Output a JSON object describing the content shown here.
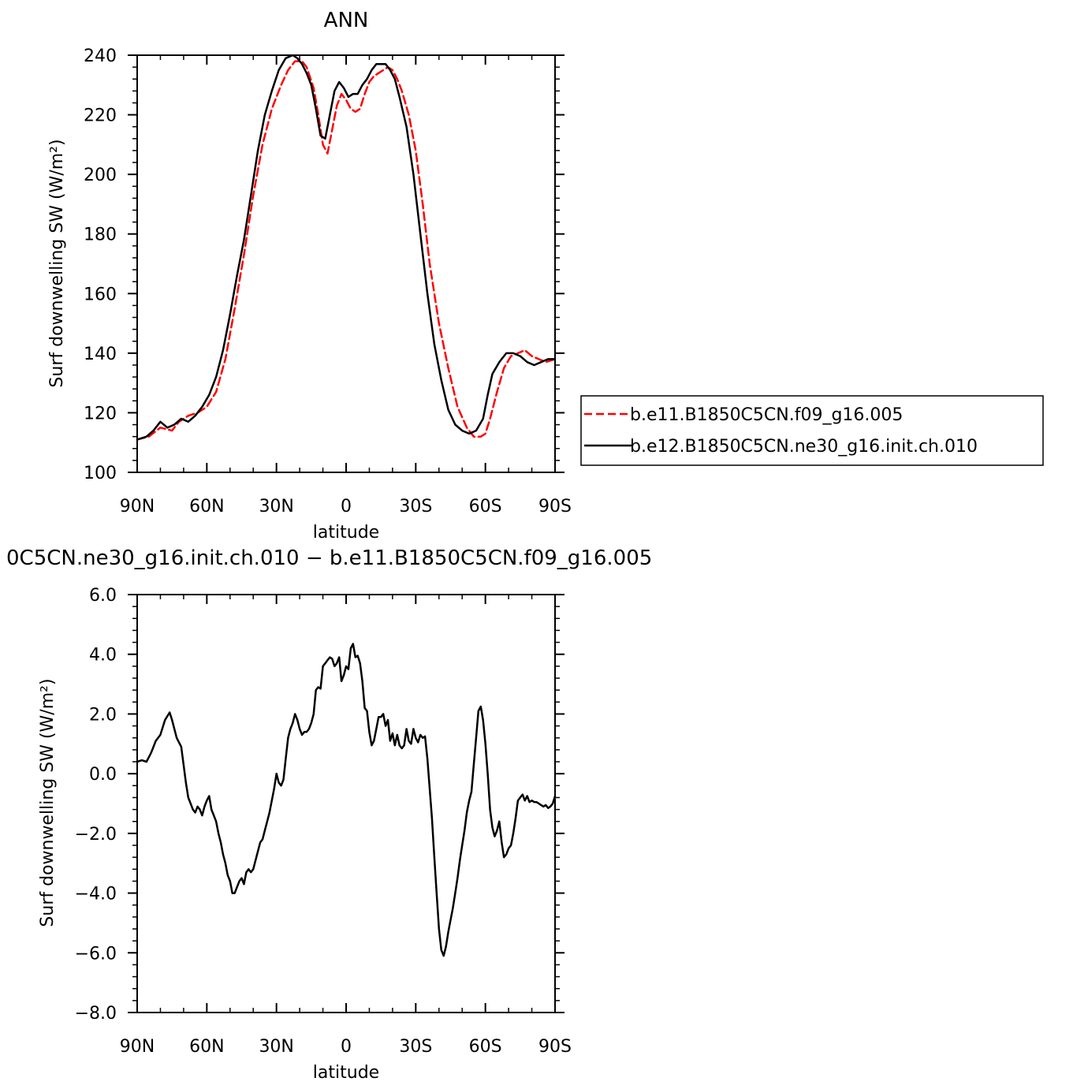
{
  "chart_data": [
    {
      "type": "line",
      "title": "ANN",
      "xlabel": "latitude",
      "ylabel": "Surf downwelling SW (W/m²)",
      "xlim": [
        -90,
        90
      ],
      "ylim": [
        100,
        240
      ],
      "xticks": [
        -90,
        -60,
        -30,
        0,
        30,
        60,
        90
      ],
      "xtick_labels": [
        "90N",
        "60N",
        "30N",
        "0",
        "30S",
        "60S",
        "90S"
      ],
      "yticks": [
        100,
        120,
        140,
        160,
        180,
        200,
        220,
        240
      ],
      "ytick_labels": [
        "100",
        "120",
        "140",
        "160",
        "180",
        "200",
        "220",
        "240"
      ],
      "grid": false,
      "legend_position": "right",
      "series": [
        {
          "name": "b.e11.B1850C5CN.f09_g16.005",
          "color": "#ff0000",
          "style": "dashed",
          "x": [
            -90,
            -85,
            -80,
            -75,
            -72,
            -68,
            -64,
            -60,
            -56,
            -52,
            -48,
            -44,
            -40,
            -36,
            -32,
            -28,
            -25,
            -22,
            -19,
            -17,
            -14,
            -12,
            -10,
            -8,
            -6,
            -4,
            -2,
            0,
            2,
            4,
            6,
            8,
            10,
            12,
            14,
            16,
            18,
            20,
            22,
            24,
            27,
            30,
            33,
            36,
            40,
            44,
            48,
            52,
            55,
            58,
            60,
            62,
            65,
            68,
            71,
            74,
            77,
            80,
            83,
            86,
            90
          ],
          "y": [
            111,
            112,
            115,
            114,
            117,
            119,
            120,
            122,
            127,
            138,
            155,
            173,
            193,
            210,
            222,
            230,
            235,
            238,
            238,
            236,
            229,
            220,
            210,
            207,
            215,
            223,
            227,
            225,
            222,
            221,
            222,
            227,
            231,
            233,
            234,
            235,
            236,
            235,
            232,
            228,
            220,
            208,
            190,
            170,
            150,
            135,
            122,
            115,
            112,
            112,
            113,
            118,
            127,
            135,
            139,
            140,
            141,
            139,
            138,
            137,
            138
          ]
        },
        {
          "name": "b.e12.B1850C5CN.ne30_g16.init.ch.010",
          "color": "#000000",
          "style": "solid",
          "x": [
            -90,
            -86,
            -83,
            -80,
            -77,
            -74,
            -71,
            -68,
            -65,
            -62,
            -59,
            -56,
            -53,
            -50,
            -47,
            -44,
            -41,
            -38,
            -35,
            -32,
            -29,
            -26,
            -23,
            -21,
            -19,
            -17,
            -15,
            -13,
            -11,
            -9,
            -7,
            -5,
            -3,
            -1,
            1,
            3,
            5,
            7,
            9,
            11,
            13,
            15,
            17,
            19,
            21,
            23,
            26,
            29,
            32,
            35,
            38,
            41,
            44,
            47,
            50,
            53,
            56,
            59,
            61,
            63,
            66,
            69,
            72,
            75,
            78,
            81,
            84,
            87,
            90
          ],
          "y": [
            111,
            112,
            114,
            117,
            115,
            116,
            118,
            117,
            119,
            122,
            126,
            132,
            141,
            153,
            166,
            178,
            193,
            208,
            220,
            228,
            235,
            239,
            240,
            239,
            237,
            234,
            230,
            222,
            213,
            212,
            220,
            228,
            231,
            229,
            226,
            227,
            227,
            230,
            232,
            235,
            237,
            237,
            237,
            235,
            232,
            226,
            216,
            200,
            180,
            160,
            143,
            131,
            121,
            116,
            114,
            113,
            114,
            118,
            126,
            133,
            137,
            140,
            140,
            139,
            137,
            136,
            137,
            138,
            138
          ]
        }
      ]
    },
    {
      "type": "line",
      "title": "0C5CN.ne30_g16.init.ch.010 − b.e11.B1850C5CN.f09_g16.005",
      "xlabel": "latitude",
      "ylabel": "Surf downwelling SW (W/m²)",
      "xlim": [
        -90,
        90
      ],
      "ylim": [
        -8,
        6
      ],
      "xticks": [
        -90,
        -60,
        -30,
        0,
        30,
        60,
        90
      ],
      "xtick_labels": [
        "90N",
        "60N",
        "30N",
        "0",
        "30S",
        "60S",
        "90S"
      ],
      "yticks": [
        -8,
        -6,
        -4,
        -2,
        0,
        2,
        4,
        6
      ],
      "ytick_labels": [
        "−8.0",
        "−6.0",
        "−4.0",
        "−2.0",
        "0.0",
        "2.0",
        "4.0",
        "6.0"
      ],
      "grid": false,
      "series": [
        {
          "color": "#000000",
          "style": "solid",
          "x": [
            -90,
            -88,
            -86,
            -84,
            -82,
            -80,
            -78,
            -76,
            -75,
            -73,
            -71,
            -69,
            -68,
            -66,
            -65,
            -64,
            -63,
            -62,
            -61,
            -60,
            -59,
            -58,
            -57,
            -56,
            -55,
            -54,
            -53,
            -52,
            -51,
            -50,
            -49,
            -48,
            -47,
            -46,
            -45,
            -44,
            -43,
            -42,
            -41,
            -40,
            -38,
            -37,
            -36,
            -35,
            -34,
            -33,
            -31,
            -30,
            -29,
            -28,
            -27,
            -26,
            -25,
            -24,
            -23,
            -22,
            -21,
            -20,
            -19,
            -18,
            -17,
            -16,
            -15,
            -14,
            -13,
            -12,
            -11,
            -10,
            -9,
            -8,
            -7,
            -6,
            -5,
            -4,
            -3,
            -2,
            -1,
            0,
            1,
            2,
            3,
            4,
            5,
            6,
            7,
            8,
            9,
            10,
            11,
            12,
            13,
            14,
            15,
            16,
            17,
            18,
            19,
            20,
            21,
            22,
            23,
            24,
            25,
            26,
            27,
            28,
            29,
            30,
            31,
            32,
            33,
            34,
            35,
            36,
            37,
            38,
            39,
            40,
            41,
            42,
            43,
            44,
            45,
            46,
            47,
            48,
            49,
            50,
            51,
            52,
            53,
            54,
            55,
            56,
            57,
            58,
            59,
            60,
            61,
            62,
            63,
            64,
            65,
            66,
            67,
            68,
            69,
            70,
            71,
            72,
            73,
            74,
            75,
            76,
            77,
            78,
            79,
            80,
            81,
            82,
            83,
            84,
            85,
            86,
            87,
            88,
            89,
            90
          ],
          "y": [
            0.4,
            0.45,
            0.4,
            0.7,
            1.1,
            1.3,
            1.8,
            2.05,
            1.8,
            1.2,
            0.9,
            -0.3,
            -0.8,
            -1.2,
            -1.3,
            -1.1,
            -1.2,
            -1.4,
            -1.1,
            -0.9,
            -0.75,
            -1.2,
            -1.4,
            -1.6,
            -2.0,
            -2.3,
            -2.7,
            -3.0,
            -3.4,
            -3.6,
            -4.0,
            -4.0,
            -3.8,
            -3.6,
            -3.5,
            -3.7,
            -3.3,
            -3.2,
            -3.3,
            -3.2,
            -2.6,
            -2.3,
            -2.2,
            -1.9,
            -1.6,
            -1.3,
            -0.5,
            0.0,
            -0.3,
            -0.4,
            -0.2,
            0.5,
            1.2,
            1.5,
            1.7,
            2.0,
            1.8,
            1.5,
            1.3,
            1.4,
            1.4,
            1.5,
            1.7,
            2.0,
            2.8,
            2.9,
            2.85,
            3.6,
            3.7,
            3.8,
            3.9,
            3.85,
            3.6,
            3.7,
            3.9,
            3.1,
            3.3,
            3.6,
            3.5,
            4.2,
            4.35,
            3.9,
            3.95,
            3.7,
            3.1,
            2.2,
            2.1,
            1.4,
            0.95,
            1.1,
            1.5,
            1.9,
            1.9,
            2.0,
            1.6,
            1.8,
            1.1,
            1.35,
            0.95,
            1.3,
            0.95,
            0.85,
            0.95,
            1.5,
            1.1,
            1.0,
            1.5,
            1.2,
            1.05,
            1.3,
            1.2,
            1.25,
            0.5,
            -0.5,
            -1.5,
            -2.8,
            -4.0,
            -5.2,
            -5.9,
            -6.1,
            -5.8,
            -5.3,
            -4.9,
            -4.5,
            -4.0,
            -3.5,
            -2.9,
            -2.4,
            -1.9,
            -1.3,
            -0.9,
            -0.6,
            0.3,
            1.2,
            2.1,
            2.25,
            1.8,
            1.0,
            0.0,
            -1.2,
            -1.8,
            -2.1,
            -1.9,
            -1.6,
            -2.3,
            -2.8,
            -2.7,
            -2.5,
            -2.4,
            -2.0,
            -1.5,
            -0.9,
            -0.8,
            -0.7,
            -0.9,
            -0.75,
            -0.95,
            -0.9,
            -0.95,
            -0.95,
            -1.0,
            -1.05,
            -1.1,
            -1.05,
            -1.15,
            -1.1,
            -1.0,
            -0.75
          ]
        }
      ]
    }
  ]
}
